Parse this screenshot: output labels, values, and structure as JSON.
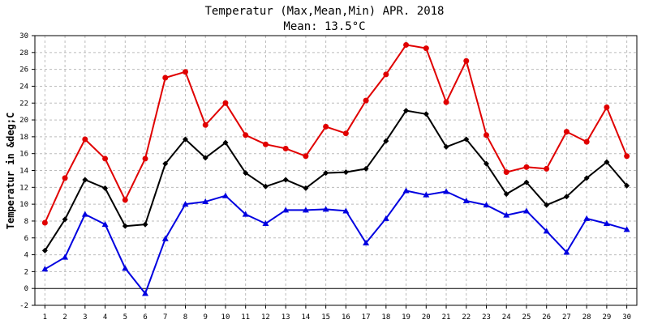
{
  "chart_data": {
    "type": "line",
    "title": "Temperatur (Max,Mean,Min) APR. 2018",
    "subtitle": "Mean: 13.5°C",
    "xlabel": "",
    "ylabel": "Temperatur in &deg;C",
    "ylim": [
      -2,
      30
    ],
    "yticks": [
      -2,
      0,
      2,
      4,
      6,
      8,
      10,
      12,
      14,
      16,
      18,
      20,
      22,
      24,
      26,
      28,
      30
    ],
    "x": [
      1,
      2,
      3,
      4,
      5,
      6,
      7,
      8,
      9,
      10,
      11,
      12,
      13,
      14,
      15,
      16,
      17,
      18,
      19,
      20,
      21,
      22,
      23,
      24,
      25,
      26,
      27,
      28,
      29,
      30
    ],
    "grid": true,
    "legend": "none",
    "series": [
      {
        "key": "max",
        "color": "#e00000",
        "marker": "circle",
        "values": [
          7.8,
          13.1,
          17.7,
          15.4,
          10.5,
          15.4,
          25.0,
          25.7,
          19.4,
          22.0,
          18.2,
          17.1,
          16.6,
          15.7,
          19.2,
          18.4,
          22.3,
          25.4,
          28.9,
          28.5,
          22.1,
          27.0,
          18.2,
          13.8,
          14.4,
          14.2,
          18.6,
          17.4,
          21.5,
          15.7
        ]
      },
      {
        "key": "mean",
        "color": "#000000",
        "marker": "diamond",
        "values": [
          4.5,
          8.2,
          12.9,
          11.9,
          7.4,
          7.6,
          14.8,
          17.7,
          15.5,
          17.3,
          13.7,
          12.1,
          12.9,
          11.9,
          13.7,
          13.8,
          14.2,
          17.5,
          21.1,
          20.7,
          16.8,
          17.7,
          14.8,
          11.2,
          12.6,
          9.9,
          10.9,
          13.1,
          15.0,
          12.2
        ]
      },
      {
        "key": "min",
        "color": "#0000e0",
        "marker": "triangle",
        "values": [
          2.3,
          3.7,
          8.8,
          7.6,
          2.4,
          -0.6,
          5.9,
          10.0,
          10.3,
          11.0,
          8.8,
          7.7,
          9.3,
          9.3,
          9.4,
          9.2,
          5.4,
          8.3,
          11.6,
          11.1,
          11.5,
          10.4,
          9.9,
          8.7,
          9.2,
          6.8,
          4.3,
          8.3,
          7.7,
          7.0
        ]
      }
    ]
  }
}
